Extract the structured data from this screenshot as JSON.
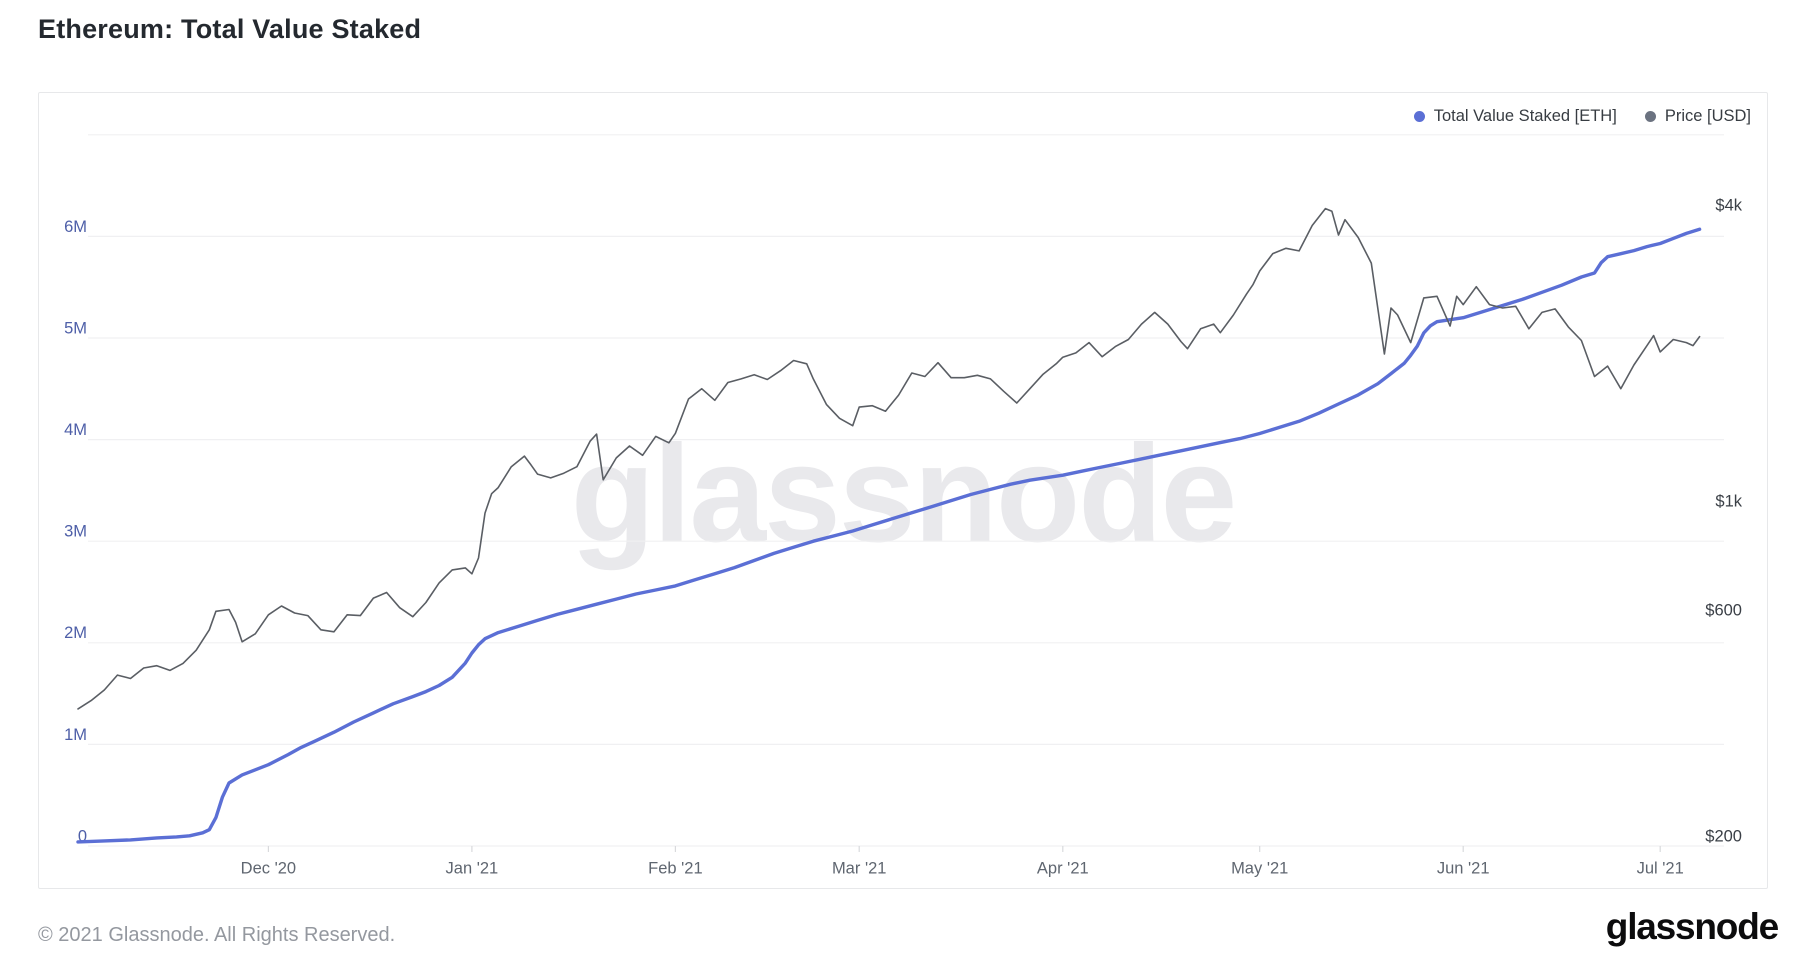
{
  "page": {
    "title": "Ethereum: Total Value Staked"
  },
  "legend": {
    "items": [
      {
        "label": "Total Value Staked [ETH]",
        "color": "#5b6fd5"
      },
      {
        "label": "Price [USD]",
        "color": "#6b7280"
      }
    ]
  },
  "watermark": "glassnode",
  "footer": {
    "copyright": "© 2021 Glassnode. All Rights Reserved.",
    "brand": "glassnode"
  },
  "colors": {
    "staked_line": "#5b6fd5",
    "price_line": "#5a5e64",
    "gridline": "#f0f0f2",
    "tick_mark": "#d9dadd",
    "left_axis_text": "#4e5fa8",
    "right_axis_text": "#3a3f46",
    "x_axis_text": "#5f6670"
  },
  "chart_data": {
    "type": "line",
    "title": "Ethereum: Total Value Staked",
    "grid": true,
    "legend_position": "top-right",
    "x_axis": {
      "start_date": "2020-11-02",
      "end_date": "2021-07-07",
      "ticks": [
        {
          "label": "Dec '20",
          "day": 29
        },
        {
          "label": "Jan '21",
          "day": 60
        },
        {
          "label": "Feb '21",
          "day": 91
        },
        {
          "label": "Mar '21",
          "day": 119
        },
        {
          "label": "Apr '21",
          "day": 150
        },
        {
          "label": "May '21",
          "day": 180
        },
        {
          "label": "Jun '21",
          "day": 211
        },
        {
          "label": "Jul '21",
          "day": 241
        }
      ]
    },
    "y_axis_left": {
      "series": "Total Value Staked [ETH]",
      "scale": "linear",
      "unit": "ETH",
      "range_millions": [
        0,
        7
      ],
      "ticks": [
        {
          "label": "0",
          "value": 0
        },
        {
          "label": "1M",
          "value": 1
        },
        {
          "label": "2M",
          "value": 2
        },
        {
          "label": "3M",
          "value": 3
        },
        {
          "label": "4M",
          "value": 4
        },
        {
          "label": "5M",
          "value": 5
        },
        {
          "label": "6M",
          "value": 6
        }
      ]
    },
    "y_axis_right": {
      "series": "Price [USD]",
      "scale": "log",
      "unit": "USD",
      "ticks": [
        {
          "label": "$200",
          "value": 200
        },
        {
          "label": "$600",
          "value": 600
        },
        {
          "label": "$1k",
          "value": 1000
        },
        {
          "label": "$4k",
          "value": 4000
        }
      ]
    },
    "series": [
      {
        "name": "Total Value Staked [ETH]",
        "axis": "left",
        "color": "#5b6fd5",
        "width": 3.4,
        "unit": "million ETH",
        "points": [
          [
            0,
            0.04
          ],
          [
            4,
            0.05
          ],
          [
            8,
            0.06
          ],
          [
            12,
            0.08
          ],
          [
            15,
            0.09
          ],
          [
            17,
            0.1
          ],
          [
            19,
            0.13
          ],
          [
            20,
            0.16
          ],
          [
            21,
            0.28
          ],
          [
            22,
            0.48
          ],
          [
            23,
            0.62
          ],
          [
            25,
            0.7
          ],
          [
            27,
            0.75
          ],
          [
            29,
            0.8
          ],
          [
            32,
            0.9
          ],
          [
            34,
            0.97
          ],
          [
            36,
            1.03
          ],
          [
            39,
            1.12
          ],
          [
            42,
            1.22
          ],
          [
            45,
            1.31
          ],
          [
            48,
            1.4
          ],
          [
            51,
            1.47
          ],
          [
            53,
            1.52
          ],
          [
            55,
            1.58
          ],
          [
            57,
            1.66
          ],
          [
            59,
            1.8
          ],
          [
            60,
            1.9
          ],
          [
            61,
            1.98
          ],
          [
            62,
            2.04
          ],
          [
            64,
            2.1
          ],
          [
            67,
            2.16
          ],
          [
            70,
            2.22
          ],
          [
            73,
            2.28
          ],
          [
            76,
            2.33
          ],
          [
            79,
            2.38
          ],
          [
            82,
            2.43
          ],
          [
            85,
            2.48
          ],
          [
            88,
            2.52
          ],
          [
            91,
            2.56
          ],
          [
            94,
            2.62
          ],
          [
            97,
            2.68
          ],
          [
            100,
            2.74
          ],
          [
            103,
            2.81
          ],
          [
            106,
            2.88
          ],
          [
            109,
            2.94
          ],
          [
            112,
            3.0
          ],
          [
            115,
            3.05
          ],
          [
            118,
            3.1
          ],
          [
            121,
            3.16
          ],
          [
            124,
            3.22
          ],
          [
            127,
            3.28
          ],
          [
            130,
            3.34
          ],
          [
            133,
            3.4
          ],
          [
            136,
            3.46
          ],
          [
            139,
            3.51
          ],
          [
            142,
            3.56
          ],
          [
            145,
            3.6
          ],
          [
            148,
            3.63
          ],
          [
            150,
            3.65
          ],
          [
            153,
            3.69
          ],
          [
            156,
            3.73
          ],
          [
            159,
            3.77
          ],
          [
            162,
            3.81
          ],
          [
            165,
            3.85
          ],
          [
            168,
            3.89
          ],
          [
            171,
            3.93
          ],
          [
            174,
            3.97
          ],
          [
            177,
            4.01
          ],
          [
            180,
            4.06
          ],
          [
            183,
            4.12
          ],
          [
            186,
            4.18
          ],
          [
            189,
            4.26
          ],
          [
            192,
            4.35
          ],
          [
            195,
            4.44
          ],
          [
            198,
            4.55
          ],
          [
            200,
            4.65
          ],
          [
            202,
            4.75
          ],
          [
            203,
            4.83
          ],
          [
            204,
            4.92
          ],
          [
            205,
            5.05
          ],
          [
            206,
            5.12
          ],
          [
            207,
            5.16
          ],
          [
            209,
            5.18
          ],
          [
            211,
            5.2
          ],
          [
            214,
            5.26
          ],
          [
            217,
            5.32
          ],
          [
            220,
            5.38
          ],
          [
            223,
            5.45
          ],
          [
            226,
            5.52
          ],
          [
            229,
            5.6
          ],
          [
            231,
            5.64
          ],
          [
            232,
            5.74
          ],
          [
            233,
            5.8
          ],
          [
            235,
            5.83
          ],
          [
            237,
            5.86
          ],
          [
            239,
            5.9
          ],
          [
            241,
            5.93
          ],
          [
            243,
            5.98
          ],
          [
            245,
            6.03
          ],
          [
            247,
            6.07
          ]
        ]
      },
      {
        "name": "Price [USD]",
        "axis": "right",
        "color": "#5a5e64",
        "width": 1.6,
        "unit": "USD",
        "points": [
          [
            0,
            380
          ],
          [
            2,
            395
          ],
          [
            4,
            415
          ],
          [
            6,
            445
          ],
          [
            8,
            438
          ],
          [
            10,
            460
          ],
          [
            12,
            465
          ],
          [
            14,
            455
          ],
          [
            16,
            470
          ],
          [
            18,
            500
          ],
          [
            20,
            550
          ],
          [
            21,
            600
          ],
          [
            23,
            605
          ],
          [
            24,
            570
          ],
          [
            25,
            520
          ],
          [
            27,
            540
          ],
          [
            29,
            590
          ],
          [
            31,
            615
          ],
          [
            33,
            595
          ],
          [
            35,
            588
          ],
          [
            37,
            550
          ],
          [
            39,
            545
          ],
          [
            41,
            590
          ],
          [
            43,
            588
          ],
          [
            45,
            638
          ],
          [
            47,
            655
          ],
          [
            49,
            610
          ],
          [
            51,
            585
          ],
          [
            53,
            625
          ],
          [
            55,
            685
          ],
          [
            57,
            728
          ],
          [
            59,
            735
          ],
          [
            60,
            715
          ],
          [
            61,
            770
          ],
          [
            62,
            950
          ],
          [
            63,
            1040
          ],
          [
            64,
            1070
          ],
          [
            66,
            1180
          ],
          [
            68,
            1240
          ],
          [
            69,
            1190
          ],
          [
            70,
            1140
          ],
          [
            72,
            1120
          ],
          [
            74,
            1145
          ],
          [
            76,
            1180
          ],
          [
            78,
            1330
          ],
          [
            79,
            1375
          ],
          [
            80,
            1110
          ],
          [
            82,
            1230
          ],
          [
            84,
            1300
          ],
          [
            86,
            1245
          ],
          [
            88,
            1360
          ],
          [
            90,
            1320
          ],
          [
            91,
            1380
          ],
          [
            93,
            1620
          ],
          [
            95,
            1700
          ],
          [
            97,
            1610
          ],
          [
            99,
            1750
          ],
          [
            101,
            1780
          ],
          [
            103,
            1815
          ],
          [
            105,
            1775
          ],
          [
            107,
            1850
          ],
          [
            109,
            1940
          ],
          [
            111,
            1910
          ],
          [
            112,
            1780
          ],
          [
            114,
            1580
          ],
          [
            116,
            1480
          ],
          [
            118,
            1430
          ],
          [
            119,
            1560
          ],
          [
            121,
            1570
          ],
          [
            123,
            1530
          ],
          [
            125,
            1650
          ],
          [
            127,
            1830
          ],
          [
            129,
            1800
          ],
          [
            131,
            1920
          ],
          [
            133,
            1790
          ],
          [
            135,
            1790
          ],
          [
            137,
            1810
          ],
          [
            139,
            1780
          ],
          [
            141,
            1680
          ],
          [
            143,
            1590
          ],
          [
            145,
            1700
          ],
          [
            147,
            1820
          ],
          [
            149,
            1910
          ],
          [
            150,
            1970
          ],
          [
            152,
            2010
          ],
          [
            154,
            2110
          ],
          [
            156,
            1975
          ],
          [
            158,
            2070
          ],
          [
            160,
            2140
          ],
          [
            162,
            2300
          ],
          [
            164,
            2430
          ],
          [
            166,
            2300
          ],
          [
            168,
            2120
          ],
          [
            169,
            2050
          ],
          [
            171,
            2250
          ],
          [
            173,
            2300
          ],
          [
            174,
            2210
          ],
          [
            176,
            2400
          ],
          [
            178,
            2650
          ],
          [
            179,
            2770
          ],
          [
            180,
            2950
          ],
          [
            182,
            3200
          ],
          [
            184,
            3280
          ],
          [
            186,
            3240
          ],
          [
            188,
            3650
          ],
          [
            190,
            3950
          ],
          [
            191,
            3900
          ],
          [
            192,
            3490
          ],
          [
            193,
            3750
          ],
          [
            195,
            3450
          ],
          [
            197,
            3060
          ],
          [
            199,
            2000
          ],
          [
            200,
            2480
          ],
          [
            201,
            2400
          ],
          [
            203,
            2110
          ],
          [
            205,
            2600
          ],
          [
            207,
            2620
          ],
          [
            209,
            2280
          ],
          [
            210,
            2620
          ],
          [
            211,
            2520
          ],
          [
            213,
            2740
          ],
          [
            215,
            2520
          ],
          [
            217,
            2480
          ],
          [
            219,
            2500
          ],
          [
            221,
            2250
          ],
          [
            223,
            2430
          ],
          [
            225,
            2470
          ],
          [
            227,
            2270
          ],
          [
            229,
            2130
          ],
          [
            231,
            1800
          ],
          [
            233,
            1890
          ],
          [
            235,
            1700
          ],
          [
            237,
            1900
          ],
          [
            239,
            2080
          ],
          [
            240,
            2180
          ],
          [
            241,
            2020
          ],
          [
            243,
            2140
          ],
          [
            245,
            2110
          ],
          [
            246,
            2080
          ],
          [
            247,
            2170
          ]
        ]
      }
    ]
  }
}
